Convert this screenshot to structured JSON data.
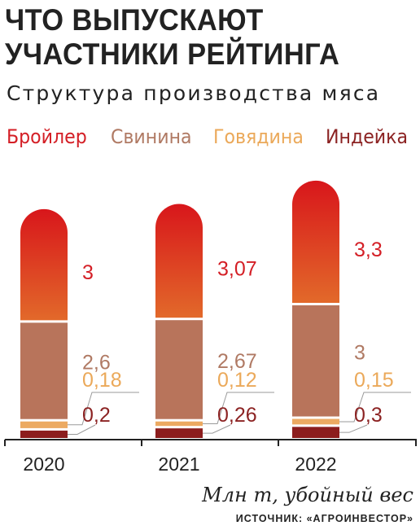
{
  "header": {
    "title_line1": "ЧТО ВЫПУСКАЮТ",
    "title_line2": "УЧАСТНИКИ РЕЙТИНГА",
    "subtitle": "Структура производства мяса"
  },
  "footer": {
    "unit": "Млн т, убойный вес",
    "source": "ИСТОЧНИК: «АГРОИНВЕСТОР»"
  },
  "colors": {
    "broiler_top": "#d8161b",
    "broiler_bottom": "#e2692a",
    "broiler_label": "#d41f26",
    "pork": "#b8745b",
    "pork_label": "#b07a64",
    "beef": "#ecaa62",
    "beef_label": "#eba95a",
    "turkey": "#8c1d1d",
    "turkey_label": "#8c2323",
    "axis": "#222222",
    "leader": "#9a9a9a"
  },
  "chart_data": {
    "type": "bar",
    "stacked": true,
    "categories": [
      "2020",
      "2021",
      "2022"
    ],
    "series": [
      {
        "name": "Бройлер",
        "values": [
          3,
          3.07,
          3.3
        ],
        "labels": [
          "3",
          "3,07",
          "3,3"
        ]
      },
      {
        "name": "Свинина",
        "values": [
          2.6,
          2.67,
          3
        ],
        "labels": [
          "2,6",
          "2,67",
          "3"
        ]
      },
      {
        "name": "Говядина",
        "values": [
          0.18,
          0.12,
          0.15
        ],
        "labels": [
          "0,18",
          "0,12",
          "0,15"
        ]
      },
      {
        "name": "Индейка",
        "values": [
          0.2,
          0.26,
          0.3
        ],
        "labels": [
          "0,2",
          "0,26",
          "0,3"
        ]
      }
    ],
    "ylabel": "Млн т, убойный вес",
    "legend_position": "top",
    "grid": false
  }
}
